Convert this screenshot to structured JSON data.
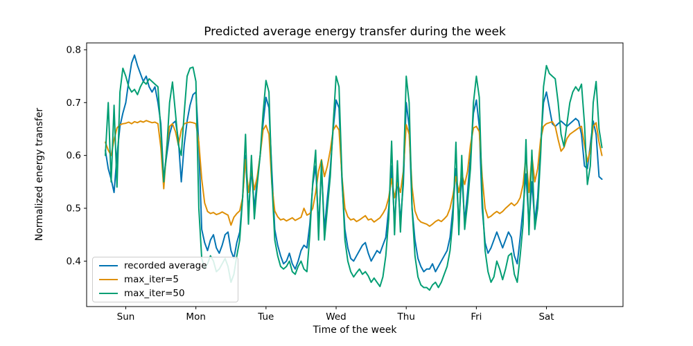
{
  "figure": {
    "background": "#ffffff",
    "frame_color": "#000000"
  },
  "chart_data": {
    "type": "line",
    "title": "Predicted average energy transfer during the week",
    "xlabel": "Time of the week",
    "ylabel": "Normalized energy transfer",
    "grid": false,
    "legend_position": "lower left",
    "x_unit": "hours from start of data (1 point per hour)",
    "xlim_hours": [
      -6.4,
      177.2
    ],
    "ylim": [
      0.314,
      0.813
    ],
    "yticks": [
      0.4,
      0.5,
      0.6,
      0.7,
      0.8
    ],
    "ytick_labels": [
      "0.4",
      "0.5",
      "0.6",
      "0.7",
      "0.8"
    ],
    "xticks": {
      "hours": [
        7,
        31,
        55,
        79,
        103,
        127,
        151
      ],
      "labels": [
        "Sun",
        "Mon",
        "Tue",
        "Wed",
        "Thu",
        "Fri",
        "Sat"
      ]
    },
    "series": [
      {
        "name": "recorded average",
        "color": "#0173b2",
        "values": [
          0.61,
          0.575,
          0.555,
          0.53,
          0.6,
          0.655,
          0.68,
          0.7,
          0.74,
          0.775,
          0.79,
          0.77,
          0.755,
          0.74,
          0.75,
          0.73,
          0.72,
          0.73,
          0.7,
          0.66,
          0.555,
          0.6,
          0.64,
          0.66,
          0.665,
          0.63,
          0.55,
          0.62,
          0.665,
          0.695,
          0.715,
          0.72,
          0.62,
          0.46,
          0.435,
          0.42,
          0.44,
          0.45,
          0.425,
          0.415,
          0.43,
          0.45,
          0.455,
          0.42,
          0.405,
          0.435,
          0.455,
          0.52,
          0.6,
          0.49,
          0.575,
          0.5,
          0.555,
          0.6,
          0.66,
          0.71,
          0.69,
          0.57,
          0.46,
          0.43,
          0.41,
          0.395,
          0.4,
          0.415,
          0.395,
          0.385,
          0.4,
          0.42,
          0.43,
          0.425,
          0.47,
          0.545,
          0.58,
          0.465,
          0.575,
          0.46,
          0.52,
          0.575,
          0.65,
          0.705,
          0.69,
          0.55,
          0.46,
          0.425,
          0.405,
          0.4,
          0.41,
          0.42,
          0.43,
          0.435,
          0.415,
          0.4,
          0.41,
          0.42,
          0.415,
          0.43,
          0.445,
          0.5,
          0.58,
          0.47,
          0.56,
          0.475,
          0.545,
          0.7,
          0.655,
          0.5,
          0.44,
          0.405,
          0.39,
          0.38,
          0.385,
          0.385,
          0.395,
          0.38,
          0.39,
          0.4,
          0.41,
          0.42,
          0.445,
          0.5,
          0.575,
          0.47,
          0.565,
          0.475,
          0.53,
          0.6,
          0.68,
          0.705,
          0.655,
          0.5,
          0.435,
          0.415,
          0.425,
          0.44,
          0.455,
          0.44,
          0.425,
          0.44,
          0.455,
          0.445,
          0.41,
          0.395,
          0.445,
          0.5,
          0.565,
          0.47,
          0.55,
          0.475,
          0.52,
          0.62,
          0.7,
          0.72,
          0.69,
          0.66,
          0.655,
          0.66,
          0.665,
          0.66,
          0.655,
          0.66,
          0.665,
          0.67,
          0.665,
          0.64,
          0.58,
          0.575,
          0.62,
          0.665,
          0.64,
          0.56,
          0.555
        ]
      },
      {
        "name": "max_iter=5",
        "color": "#de8f05",
        "values": [
          0.625,
          0.61,
          0.6,
          0.63,
          0.652,
          0.658,
          0.66,
          0.661,
          0.663,
          0.66,
          0.664,
          0.662,
          0.665,
          0.663,
          0.666,
          0.664,
          0.662,
          0.663,
          0.66,
          0.615,
          0.537,
          0.615,
          0.655,
          0.66,
          0.645,
          0.62,
          0.648,
          0.66,
          0.662,
          0.663,
          0.662,
          0.66,
          0.625,
          0.555,
          0.51,
          0.494,
          0.49,
          0.492,
          0.488,
          0.49,
          0.493,
          0.49,
          0.487,
          0.468,
          0.483,
          0.49,
          0.495,
          0.52,
          0.592,
          0.53,
          0.572,
          0.535,
          0.56,
          0.6,
          0.648,
          0.657,
          0.64,
          0.545,
          0.495,
          0.484,
          0.478,
          0.48,
          0.476,
          0.479,
          0.482,
          0.477,
          0.48,
          0.483,
          0.5,
          0.487,
          0.49,
          0.5,
          0.53,
          0.57,
          0.592,
          0.56,
          0.58,
          0.61,
          0.648,
          0.657,
          0.648,
          0.56,
          0.5,
          0.484,
          0.478,
          0.48,
          0.475,
          0.478,
          0.482,
          0.486,
          0.478,
          0.48,
          0.474,
          0.478,
          0.482,
          0.49,
          0.5,
          0.52,
          0.556,
          0.52,
          0.548,
          0.53,
          0.57,
          0.658,
          0.64,
          0.54,
          0.495,
          0.48,
          0.474,
          0.472,
          0.47,
          0.466,
          0.47,
          0.475,
          0.478,
          0.475,
          0.48,
          0.486,
          0.5,
          0.525,
          0.56,
          0.53,
          0.565,
          0.545,
          0.57,
          0.62,
          0.652,
          0.655,
          0.645,
          0.56,
          0.5,
          0.482,
          0.485,
          0.49,
          0.494,
          0.49,
          0.494,
          0.5,
          0.505,
          0.51,
          0.505,
          0.51,
          0.52,
          0.545,
          0.6,
          0.53,
          0.6,
          0.55,
          0.575,
          0.63,
          0.655,
          0.66,
          0.662,
          0.664,
          0.655,
          0.63,
          0.608,
          0.615,
          0.632,
          0.64,
          0.644,
          0.648,
          0.652,
          0.655,
          0.62,
          0.588,
          0.61,
          0.655,
          0.662,
          0.625,
          0.6
        ]
      },
      {
        "name": "max_iter=50",
        "color": "#029e73",
        "values": [
          0.6,
          0.7,
          0.55,
          0.695,
          0.54,
          0.72,
          0.765,
          0.75,
          0.73,
          0.72,
          0.725,
          0.715,
          0.73,
          0.74,
          0.735,
          0.745,
          0.74,
          0.735,
          0.73,
          0.645,
          0.55,
          0.61,
          0.7,
          0.739,
          0.68,
          0.62,
          0.6,
          0.68,
          0.75,
          0.765,
          0.767,
          0.74,
          0.5,
          0.405,
          0.385,
          0.395,
          0.41,
          0.4,
          0.38,
          0.385,
          0.395,
          0.405,
          0.39,
          0.36,
          0.375,
          0.41,
          0.44,
          0.52,
          0.64,
          0.47,
          0.6,
          0.48,
          0.545,
          0.6,
          0.68,
          0.742,
          0.72,
          0.55,
          0.44,
          0.41,
          0.39,
          0.385,
          0.39,
          0.4,
          0.38,
          0.375,
          0.39,
          0.4,
          0.385,
          0.38,
          0.45,
          0.55,
          0.61,
          0.44,
          0.59,
          0.44,
          0.5,
          0.56,
          0.66,
          0.75,
          0.73,
          0.56,
          0.44,
          0.4,
          0.38,
          0.37,
          0.378,
          0.385,
          0.375,
          0.38,
          0.372,
          0.36,
          0.368,
          0.36,
          0.352,
          0.37,
          0.41,
          0.48,
          0.627,
          0.45,
          0.59,
          0.455,
          0.56,
          0.75,
          0.7,
          0.5,
          0.41,
          0.37,
          0.355,
          0.35,
          0.35,
          0.345,
          0.355,
          0.36,
          0.35,
          0.36,
          0.375,
          0.39,
          0.42,
          0.48,
          0.625,
          0.45,
          0.6,
          0.46,
          0.51,
          0.575,
          0.7,
          0.75,
          0.71,
          0.52,
          0.42,
          0.38,
          0.36,
          0.37,
          0.4,
          0.385,
          0.365,
          0.385,
          0.41,
          0.415,
          0.375,
          0.36,
          0.41,
          0.47,
          0.63,
          0.45,
          0.61,
          0.46,
          0.5,
          0.6,
          0.73,
          0.77,
          0.755,
          0.75,
          0.745,
          0.7,
          0.64,
          0.617,
          0.66,
          0.7,
          0.72,
          0.73,
          0.722,
          0.735,
          0.66,
          0.545,
          0.58,
          0.7,
          0.74,
          0.65,
          0.615
        ]
      }
    ]
  }
}
